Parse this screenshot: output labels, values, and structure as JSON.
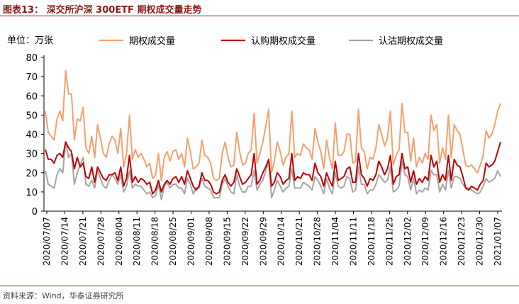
{
  "figure": {
    "label": "图表13：",
    "title": "深交所沪深 300ETF 期权成交量走势",
    "source": "资料来源：Wind，华泰证券研究所"
  },
  "chart_data": {
    "type": "line",
    "unit_label": "单位：万张",
    "ylim": [
      0,
      80
    ],
    "yticks": [
      0,
      10,
      20,
      30,
      40,
      50,
      60,
      70,
      80
    ],
    "legend_position": "top",
    "x_tick_labels": [
      "2020/07/07",
      "2020/07/14",
      "2020/07/21",
      "2020/07/28",
      "2020/08/04",
      "2020/08/11",
      "2020/08/18",
      "2020/08/25",
      "2020/09/01",
      "2020/09/08",
      "2020/09/15",
      "2020/09/22",
      "2020/09/29",
      "2020/10/14",
      "2020/10/21",
      "2020/10/28",
      "2020/11/04",
      "2020/11/11",
      "2020/11/18",
      "2020/11/25",
      "2020/12/02",
      "2020/12/09",
      "2020/12/16",
      "2020/12/23",
      "2020/12/30",
      "2021/01/07"
    ],
    "series": [
      {
        "name": "期权成交量",
        "color": "#f4a070",
        "values": [
          52,
          41,
          39,
          37,
          48,
          52,
          47,
          73,
          61,
          61,
          37,
          48,
          47,
          54,
          33,
          30,
          39,
          28,
          45,
          38,
          30,
          28,
          35,
          39,
          37,
          30,
          43,
          23,
          30,
          50,
          27,
          32,
          28,
          30,
          27,
          23,
          25,
          17,
          19,
          30,
          16,
          28,
          31,
          26,
          31,
          32,
          27,
          30,
          23,
          38,
          31,
          22,
          23,
          25,
          37,
          29,
          28,
          25,
          17,
          16,
          17,
          30,
          36,
          28,
          23,
          24,
          41,
          31,
          24,
          25,
          30,
          32,
          51,
          25,
          30,
          36,
          44,
          53,
          20,
          26,
          36,
          31,
          24,
          28,
          30,
          52,
          28,
          30,
          29,
          35,
          33,
          32,
          27,
          43,
          36,
          31,
          22,
          37,
          28,
          22,
          46,
          29,
          29,
          31,
          40,
          40,
          25,
          26,
          53,
          33,
          31,
          22,
          28,
          27,
          33,
          45,
          40,
          34,
          38,
          52,
          24,
          29,
          32,
          56,
          41,
          41,
          26,
          38,
          23,
          28,
          25,
          30,
          27,
          50,
          42,
          45,
          25,
          33,
          27,
          50,
          28,
          45,
          42,
          40,
          32,
          24,
          23,
          24,
          22,
          20,
          24,
          29,
          42,
          38,
          40,
          45,
          52,
          56
        ]
      },
      {
        "name": "认购期权成交量",
        "color": "#c00000",
        "values": [
          32,
          27,
          27,
          25,
          29,
          30,
          28,
          36,
          33,
          31,
          22,
          28,
          23,
          25,
          18,
          17,
          23,
          15,
          23,
          20,
          17,
          16,
          19,
          19,
          20,
          16,
          23,
          13,
          17,
          29,
          15,
          18,
          15,
          17,
          16,
          14,
          15,
          9,
          11,
          16,
          10,
          14,
          16,
          14,
          17,
          18,
          15,
          18,
          14,
          21,
          17,
          13,
          11,
          13,
          20,
          16,
          16,
          14,
          10,
          9,
          10,
          16,
          19,
          15,
          13,
          15,
          22,
          18,
          14,
          15,
          17,
          19,
          30,
          14,
          16,
          20,
          23,
          27,
          13,
          15,
          20,
          18,
          14,
          16,
          17,
          30,
          16,
          18,
          17,
          20,
          19,
          19,
          16,
          25,
          20,
          18,
          13,
          20,
          16,
          13,
          26,
          16,
          17,
          18,
          22,
          23,
          15,
          15,
          30,
          19,
          17,
          13,
          17,
          16,
          19,
          26,
          23,
          19,
          22,
          29,
          14,
          18,
          19,
          30,
          22,
          23,
          15,
          21,
          14,
          17,
          15,
          18,
          16,
          29,
          23,
          26,
          15,
          19,
          16,
          29,
          16,
          27,
          24,
          23,
          18,
          12,
          11,
          13,
          12,
          11,
          14,
          16,
          25,
          23,
          24,
          26,
          31,
          36
        ]
      },
      {
        "name": "认沽期权成交量",
        "color": "#a6a6a6",
        "values": [
          21,
          14,
          13,
          12,
          19,
          22,
          20,
          36,
          28,
          30,
          14,
          20,
          24,
          28,
          14,
          13,
          16,
          12,
          21,
          17,
          13,
          12,
          16,
          19,
          17,
          14,
          19,
          10,
          13,
          21,
          12,
          14,
          13,
          13,
          11,
          9,
          10,
          7,
          8,
          14,
          6,
          13,
          15,
          12,
          14,
          14,
          12,
          12,
          9,
          17,
          14,
          9,
          12,
          12,
          17,
          13,
          12,
          11,
          7,
          7,
          7,
          14,
          17,
          13,
          10,
          9,
          19,
          13,
          10,
          10,
          13,
          13,
          21,
          11,
          14,
          16,
          21,
          26,
          7,
          11,
          16,
          13,
          10,
          12,
          13,
          22,
          12,
          12,
          12,
          15,
          14,
          13,
          11,
          18,
          16,
          13,
          9,
          17,
          12,
          9,
          20,
          13,
          12,
          13,
          18,
          17,
          10,
          11,
          23,
          14,
          14,
          9,
          11,
          11,
          14,
          19,
          17,
          15,
          16,
          23,
          10,
          11,
          13,
          26,
          19,
          18,
          11,
          17,
          9,
          11,
          10,
          12,
          11,
          21,
          19,
          19,
          10,
          14,
          11,
          21,
          12,
          18,
          18,
          17,
          14,
          12,
          12,
          11,
          10,
          9,
          10,
          13,
          17,
          15,
          16,
          17,
          21,
          18
        ]
      }
    ]
  }
}
